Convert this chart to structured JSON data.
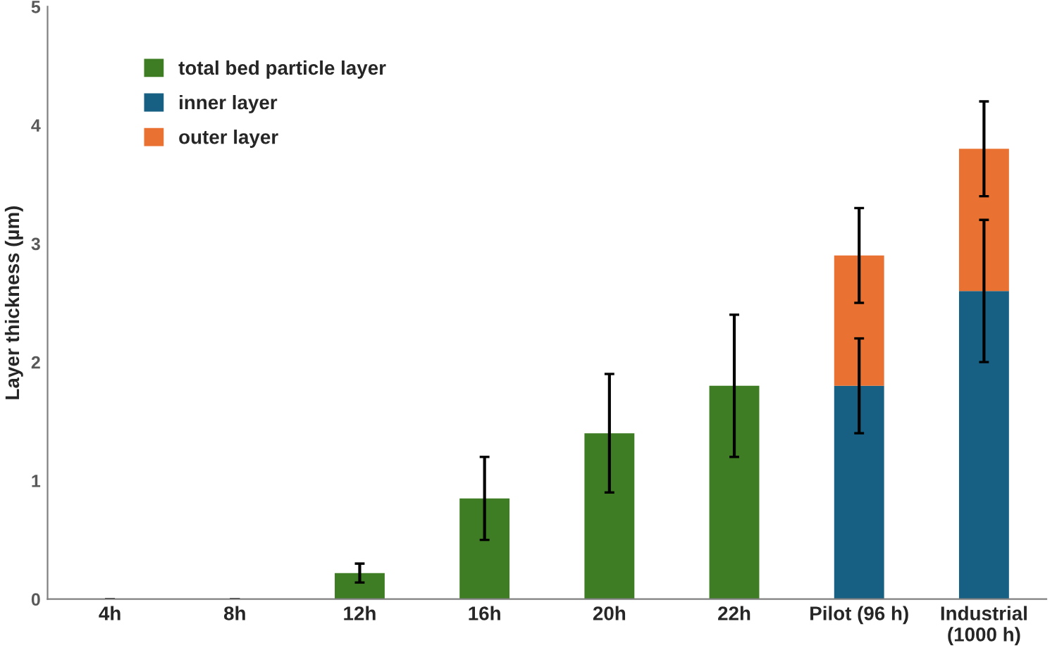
{
  "chart_data": {
    "type": "bar",
    "ylabel": "Layer thickness (µm)",
    "categories": [
      "4h",
      "8h",
      "12h",
      "16h",
      "20h",
      "22h",
      "Pilot (96 h)",
      "Industrial\n(1000 h)"
    ],
    "series": [
      {
        "name": "total bed particle layer",
        "color": "#3e7d23",
        "values": [
          0,
          0,
          0.22,
          0.85,
          1.4,
          1.8,
          null,
          null
        ],
        "errors": [
          0,
          0,
          0.08,
          0.35,
          0.5,
          0.6,
          null,
          null
        ]
      },
      {
        "name": "inner layer",
        "color": "#176083",
        "values": [
          null,
          null,
          null,
          null,
          null,
          null,
          1.8,
          2.6
        ],
        "errors": [
          null,
          null,
          null,
          null,
          null,
          null,
          0.4,
          0.6
        ]
      },
      {
        "name": "outer layer",
        "color": "#e97132",
        "values": [
          null,
          null,
          null,
          null,
          null,
          null,
          1.1,
          1.2
        ],
        "errors": [
          null,
          null,
          null,
          null,
          null,
          null,
          0.4,
          0.4
        ]
      }
    ],
    "stacked": true,
    "ylim": [
      0,
      5
    ],
    "yticks": [
      0,
      1,
      2,
      3,
      4,
      5
    ],
    "grid": false,
    "legend": "top left"
  }
}
